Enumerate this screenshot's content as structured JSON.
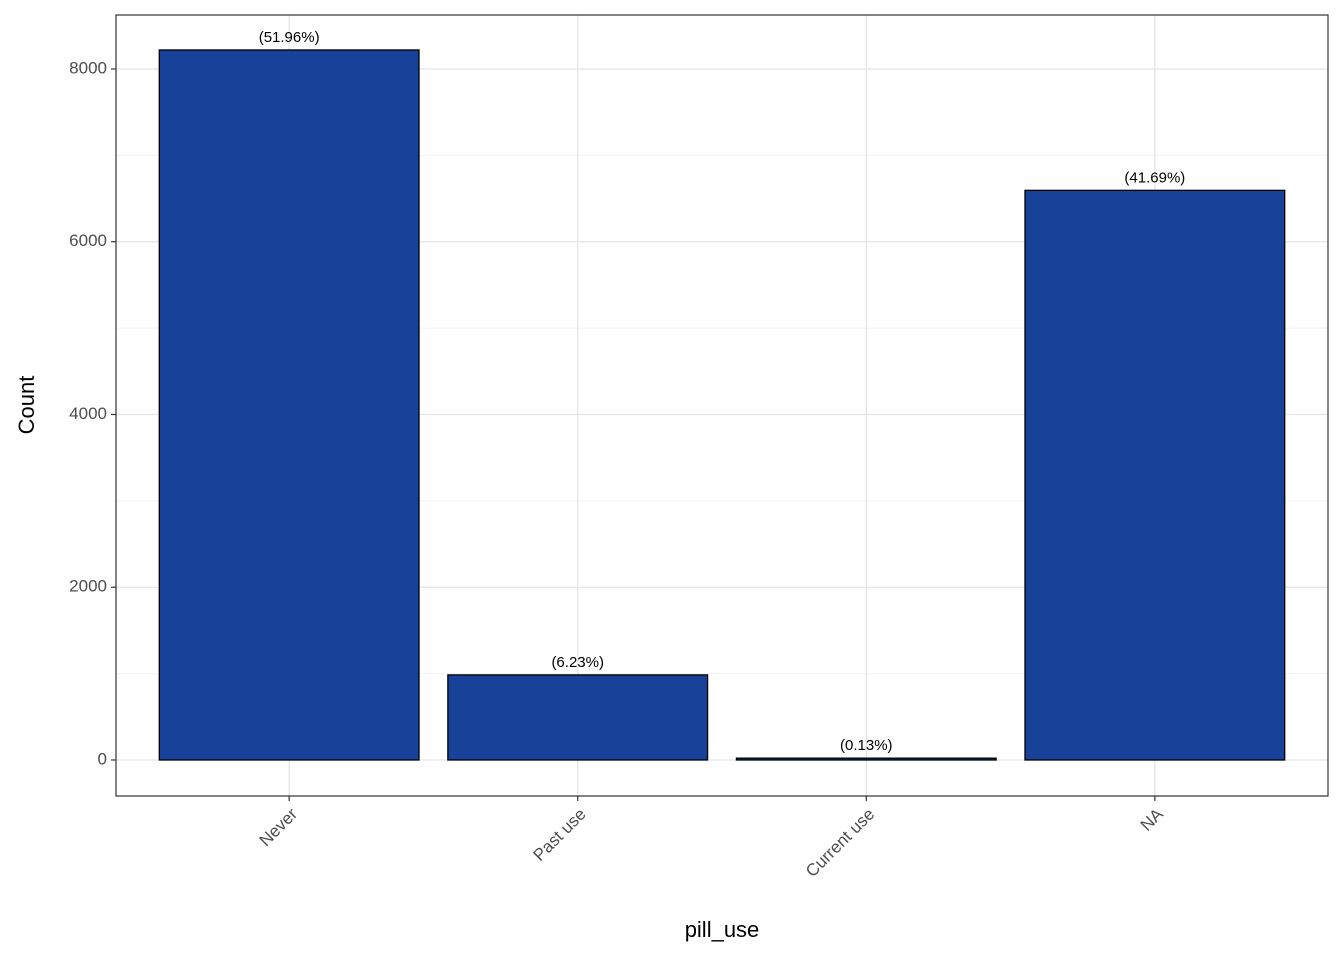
{
  "chart_data": {
    "type": "bar",
    "x_label": "pill_use",
    "y_label": "Count",
    "categories": [
      "Never",
      "Past use",
      "Current use",
      "NA"
    ],
    "values": [
      8220,
      985,
      21,
      6595
    ],
    "bar_labels": [
      "(51.96%)",
      "(6.23%)",
      "(0.13%)",
      "(41.69%)"
    ],
    "color": "#18419a",
    "edge_color": "#000000",
    "ylim": [
      -417,
      8625
    ],
    "yticks": [
      0,
      2000,
      4000,
      6000,
      8000
    ],
    "minor_yticks": [
      1000,
      3000,
      5000,
      7000
    ],
    "grid": true
  }
}
